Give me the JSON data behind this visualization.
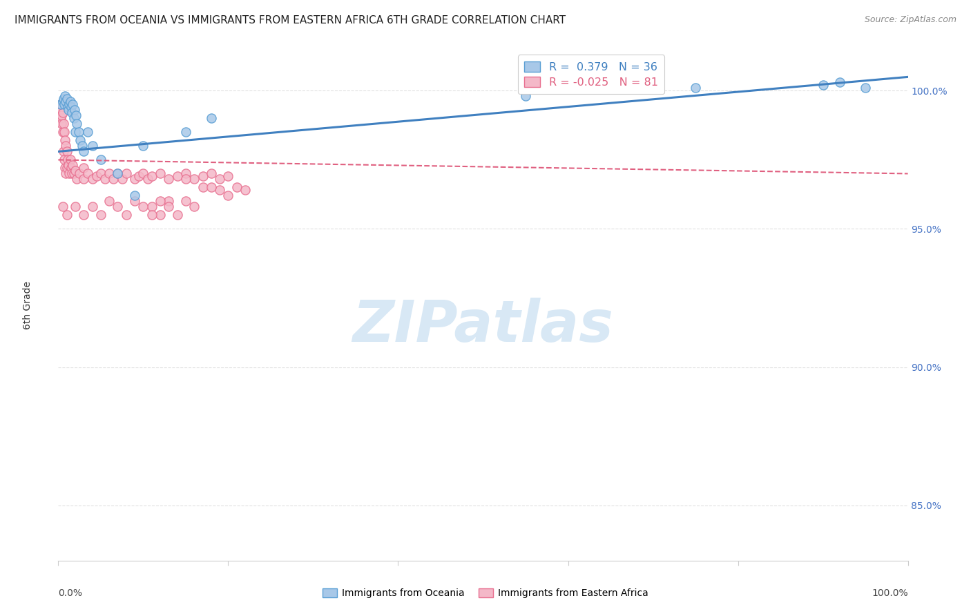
{
  "title": "IMMIGRANTS FROM OCEANIA VS IMMIGRANTS FROM EASTERN AFRICA 6TH GRADE CORRELATION CHART",
  "source": "Source: ZipAtlas.com",
  "ylabel": "6th Grade",
  "watermark_zip": "ZIP",
  "watermark_atlas": "atlas",
  "right_yticks": [
    85.0,
    90.0,
    95.0,
    100.0
  ],
  "right_ytick_labels": [
    "85.0%",
    "90.0%",
    "95.0%",
    "100.0%"
  ],
  "legend_blue_label": "R =  0.379   N = 36",
  "legend_pink_label": "R = -0.025   N = 81",
  "legend_label_blue": "Immigrants from Oceania",
  "legend_label_pink": "Immigrants from Eastern Africa",
  "blue_color": "#a8c8e8",
  "pink_color": "#f4b8c8",
  "blue_edge_color": "#5a9fd4",
  "pink_edge_color": "#e87090",
  "blue_line_color": "#4080c0",
  "pink_line_color": "#e06080",
  "blue_scatter_x": [
    0.3,
    0.5,
    0.6,
    0.7,
    0.8,
    0.9,
    1.0,
    1.1,
    1.2,
    1.3,
    1.4,
    1.5,
    1.6,
    1.7,
    1.8,
    1.9,
    2.0,
    2.1,
    2.2,
    2.4,
    2.6,
    2.8,
    3.0,
    3.5,
    4.0,
    5.0,
    7.0,
    9.0,
    10.0,
    15.0,
    18.0,
    55.0,
    75.0,
    90.0,
    92.0,
    95.0
  ],
  "blue_scatter_y": [
    99.5,
    99.6,
    99.7,
    99.5,
    99.8,
    99.6,
    99.7,
    99.4,
    99.3,
    99.5,
    99.6,
    99.4,
    99.2,
    99.5,
    99.0,
    99.3,
    98.5,
    99.1,
    98.8,
    98.5,
    98.2,
    98.0,
    97.8,
    98.5,
    98.0,
    97.5,
    97.0,
    96.2,
    98.0,
    98.5,
    99.0,
    99.8,
    100.1,
    100.2,
    100.3,
    100.1
  ],
  "pink_scatter_x": [
    0.2,
    0.3,
    0.3,
    0.4,
    0.4,
    0.5,
    0.5,
    0.6,
    0.6,
    0.7,
    0.7,
    0.8,
    0.8,
    0.9,
    0.9,
    1.0,
    1.0,
    1.1,
    1.2,
    1.3,
    1.4,
    1.5,
    1.6,
    1.7,
    1.8,
    2.0,
    2.2,
    2.5,
    3.0,
    3.0,
    3.5,
    4.0,
    4.5,
    5.0,
    5.5,
    6.0,
    6.5,
    7.0,
    7.5,
    8.0,
    9.0,
    9.5,
    10.0,
    10.5,
    11.0,
    12.0,
    13.0,
    14.0,
    15.0,
    16.0,
    17.0,
    18.0,
    19.0,
    20.0,
    21.0,
    22.0,
    15.0,
    17.0,
    19.0,
    20.0,
    16.0,
    13.0,
    18.0,
    12.0,
    11.0,
    15.0,
    14.0,
    13.0,
    12.0,
    11.0,
    10.0,
    9.0,
    8.0,
    7.0,
    6.0,
    5.0,
    4.0,
    3.0,
    2.0,
    1.0,
    0.5
  ],
  "pink_scatter_y": [
    99.3,
    99.5,
    99.0,
    98.8,
    99.1,
    99.2,
    98.5,
    98.8,
    97.8,
    98.5,
    97.5,
    98.2,
    97.2,
    98.0,
    97.0,
    97.8,
    97.2,
    97.5,
    97.3,
    97.0,
    97.5,
    97.2,
    97.0,
    97.3,
    97.0,
    97.1,
    96.8,
    97.0,
    97.2,
    96.8,
    97.0,
    96.8,
    96.9,
    97.0,
    96.8,
    97.0,
    96.8,
    97.0,
    96.8,
    97.0,
    96.8,
    96.9,
    97.0,
    96.8,
    96.9,
    97.0,
    96.8,
    96.9,
    97.0,
    96.8,
    96.9,
    97.0,
    96.8,
    96.9,
    96.5,
    96.4,
    96.8,
    96.5,
    96.4,
    96.2,
    95.8,
    96.0,
    96.5,
    95.5,
    95.8,
    96.0,
    95.5,
    95.8,
    96.0,
    95.5,
    95.8,
    96.0,
    95.5,
    95.8,
    96.0,
    95.5,
    95.8,
    95.5,
    95.8,
    95.5,
    95.8
  ],
  "xlim": [
    0,
    100
  ],
  "ylim": [
    83.0,
    101.5
  ],
  "blue_trend_x": [
    0,
    100
  ],
  "blue_trend_y": [
    97.8,
    100.5
  ],
  "pink_trend_x": [
    0,
    100
  ],
  "pink_trend_y": [
    97.5,
    97.0
  ],
  "grid_yticks": [
    85.0,
    90.0,
    95.0,
    100.0
  ],
  "grid_color": "#e0e0e0",
  "background_color": "#ffffff",
  "title_fontsize": 11,
  "source_fontsize": 9,
  "right_ytick_color": "#4472c4",
  "watermark_color": "#d8e8f5"
}
